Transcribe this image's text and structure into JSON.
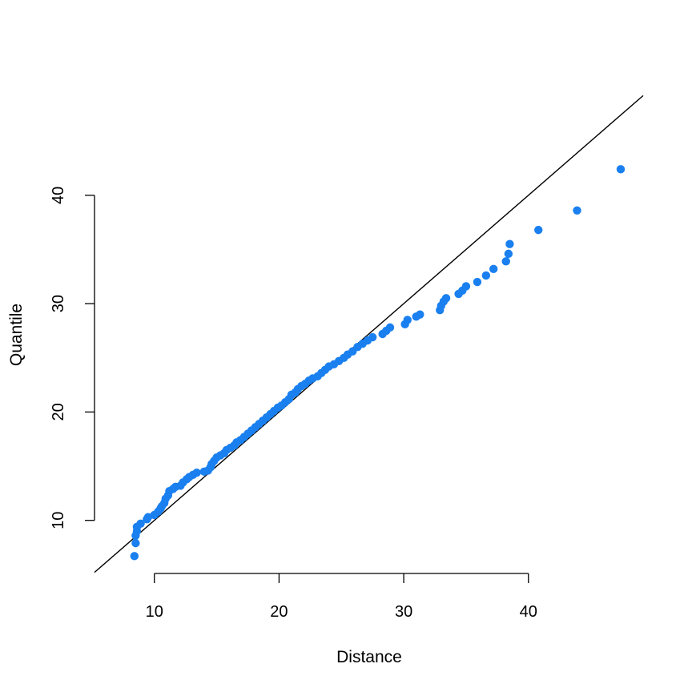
{
  "chart_data": {
    "type": "scatter",
    "title": "",
    "xlabel": "Distance",
    "ylabel": "Quantile",
    "x_ticks": [
      10,
      20,
      30,
      40
    ],
    "y_ticks": [
      10,
      20,
      30,
      40
    ],
    "xlim": [
      5.2,
      49.2
    ],
    "ylim": [
      5.1,
      49.3
    ],
    "grid": false,
    "legend": "none",
    "point_color": "#1a80f0",
    "line_color": "#000000",
    "reference_line": {
      "slope": 1,
      "intercept": 0
    },
    "points": [
      [
        8.4,
        6.7
      ],
      [
        8.5,
        7.9
      ],
      [
        8.5,
        8.6
      ],
      [
        8.6,
        9.0
      ],
      [
        8.6,
        9.4
      ],
      [
        8.9,
        9.7
      ],
      [
        9.4,
        10.1
      ],
      [
        9.5,
        10.3
      ],
      [
        10.0,
        10.5
      ],
      [
        10.3,
        10.8
      ],
      [
        10.5,
        11.1
      ],
      [
        10.6,
        11.3
      ],
      [
        10.8,
        11.6
      ],
      [
        10.9,
        12.0
      ],
      [
        11.1,
        12.3
      ],
      [
        11.2,
        12.7
      ],
      [
        11.5,
        12.9
      ],
      [
        11.7,
        13.1
      ],
      [
        12.1,
        13.2
      ],
      [
        12.3,
        13.5
      ],
      [
        12.6,
        13.8
      ],
      [
        12.8,
        14.0
      ],
      [
        13.1,
        14.2
      ],
      [
        13.4,
        14.4
      ],
      [
        14.0,
        14.5
      ],
      [
        14.3,
        14.6
      ],
      [
        14.5,
        14.9
      ],
      [
        14.6,
        15.2
      ],
      [
        14.8,
        15.5
      ],
      [
        15.0,
        15.8
      ],
      [
        15.3,
        16.0
      ],
      [
        15.6,
        16.2
      ],
      [
        15.8,
        16.5
      ],
      [
        16.1,
        16.7
      ],
      [
        16.4,
        16.9
      ],
      [
        16.6,
        17.2
      ],
      [
        16.9,
        17.4
      ],
      [
        17.2,
        17.7
      ],
      [
        17.5,
        18.0
      ],
      [
        17.8,
        18.3
      ],
      [
        18.1,
        18.6
      ],
      [
        18.4,
        18.9
      ],
      [
        18.7,
        19.2
      ],
      [
        19.0,
        19.5
      ],
      [
        19.3,
        19.8
      ],
      [
        19.6,
        20.1
      ],
      [
        19.9,
        20.4
      ],
      [
        20.2,
        20.6
      ],
      [
        20.5,
        20.9
      ],
      [
        20.8,
        21.2
      ],
      [
        21.0,
        21.6
      ],
      [
        21.3,
        21.8
      ],
      [
        21.5,
        22.1
      ],
      [
        21.8,
        22.4
      ],
      [
        22.1,
        22.6
      ],
      [
        22.4,
        22.9
      ],
      [
        22.7,
        23.1
      ],
      [
        23.1,
        23.3
      ],
      [
        23.4,
        23.6
      ],
      [
        23.7,
        23.9
      ],
      [
        24.0,
        24.2
      ],
      [
        24.4,
        24.4
      ],
      [
        24.8,
        24.7
      ],
      [
        25.2,
        25.0
      ],
      [
        25.5,
        25.3
      ],
      [
        25.9,
        25.6
      ],
      [
        26.3,
        26.0
      ],
      [
        26.7,
        26.3
      ],
      [
        27.1,
        26.6
      ],
      [
        27.5,
        26.9
      ],
      [
        28.3,
        27.2
      ],
      [
        28.6,
        27.5
      ],
      [
        28.9,
        27.8
      ],
      [
        30.1,
        28.1
      ],
      [
        30.3,
        28.5
      ],
      [
        31.0,
        28.8
      ],
      [
        31.3,
        29.0
      ],
      [
        32.9,
        29.4
      ],
      [
        33.0,
        29.8
      ],
      [
        33.2,
        30.2
      ],
      [
        33.4,
        30.5
      ],
      [
        34.4,
        30.9
      ],
      [
        34.7,
        31.2
      ],
      [
        35.0,
        31.6
      ],
      [
        35.9,
        32.0
      ],
      [
        36.6,
        32.6
      ],
      [
        37.2,
        33.2
      ],
      [
        38.2,
        33.9
      ],
      [
        38.4,
        34.6
      ],
      [
        38.5,
        35.5
      ],
      [
        40.8,
        36.8
      ],
      [
        43.9,
        38.6
      ],
      [
        47.4,
        42.4
      ]
    ]
  }
}
